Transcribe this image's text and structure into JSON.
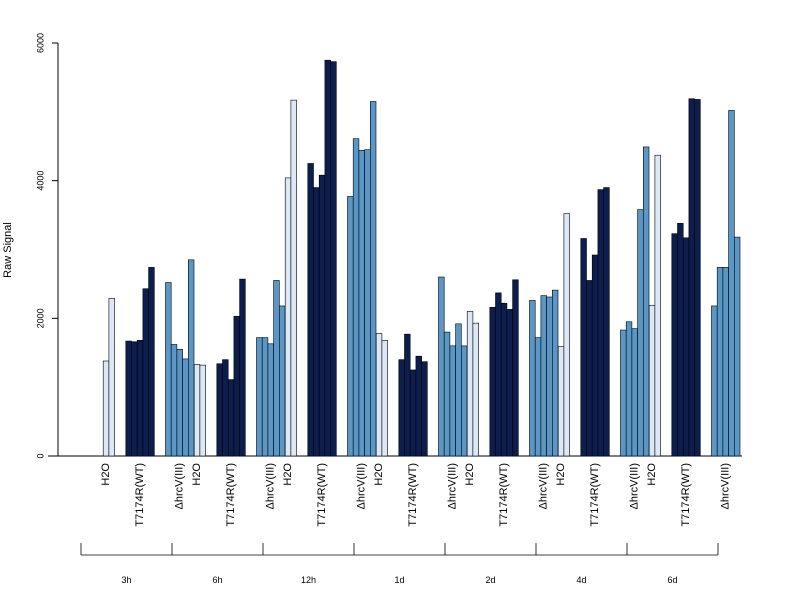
{
  "chart_data": {
    "type": "bar",
    "ylabel": "Raw Signal",
    "ylim": [
      0,
      6000
    ],
    "yticks": [
      0,
      2000,
      4000,
      6000
    ],
    "group_labels": [
      "H2O",
      "T7174R(WT)",
      "ΔhrcV(III)"
    ],
    "group_colors": [
      "#dce8f5",
      "#0b1e4e",
      "#5b97c6"
    ],
    "timepoints": [
      {
        "label": "3h",
        "groups": [
          [
            0,
            1380,
            2290
          ],
          [
            1670,
            1660,
            1680,
            2430,
            2740
          ],
          [
            2520,
            1620,
            1550,
            1410,
            2850
          ]
        ]
      },
      {
        "label": "6h",
        "groups": [
          [
            0,
            1330,
            1320
          ],
          [
            1340,
            1400,
            1110,
            2030,
            2570
          ],
          [
            1720,
            1720,
            1630,
            2550,
            2180
          ]
        ]
      },
      {
        "label": "12h",
        "groups": [
          [
            0,
            4040,
            5170
          ],
          [
            4250,
            3900,
            4080,
            5750,
            5730
          ],
          [
            3770,
            4610,
            4440,
            4450,
            5150
          ]
        ]
      },
      {
        "label": "1d",
        "groups": [
          [
            0,
            1780,
            1680
          ],
          [
            1400,
            1770,
            1250,
            1450,
            1370
          ],
          [
            2600,
            1800,
            1600,
            1920,
            1600
          ]
        ]
      },
      {
        "label": "2d",
        "groups": [
          [
            0,
            2100,
            1930
          ],
          [
            2160,
            2370,
            2220,
            2130,
            2560
          ],
          [
            2260,
            1720,
            2330,
            2310,
            2410
          ]
        ]
      },
      {
        "label": "4d",
        "groups": [
          [
            0,
            1590,
            3520
          ],
          [
            3160,
            2550,
            2920,
            3870,
            3900
          ],
          [
            1830,
            1950,
            1850,
            3580,
            4490
          ]
        ]
      },
      {
        "label": "6d",
        "groups": [
          [
            0,
            2190,
            4370
          ],
          [
            3230,
            3380,
            3170,
            5190,
            5180
          ],
          [
            2180,
            2740,
            2740,
            5020,
            3180
          ]
        ]
      }
    ]
  }
}
